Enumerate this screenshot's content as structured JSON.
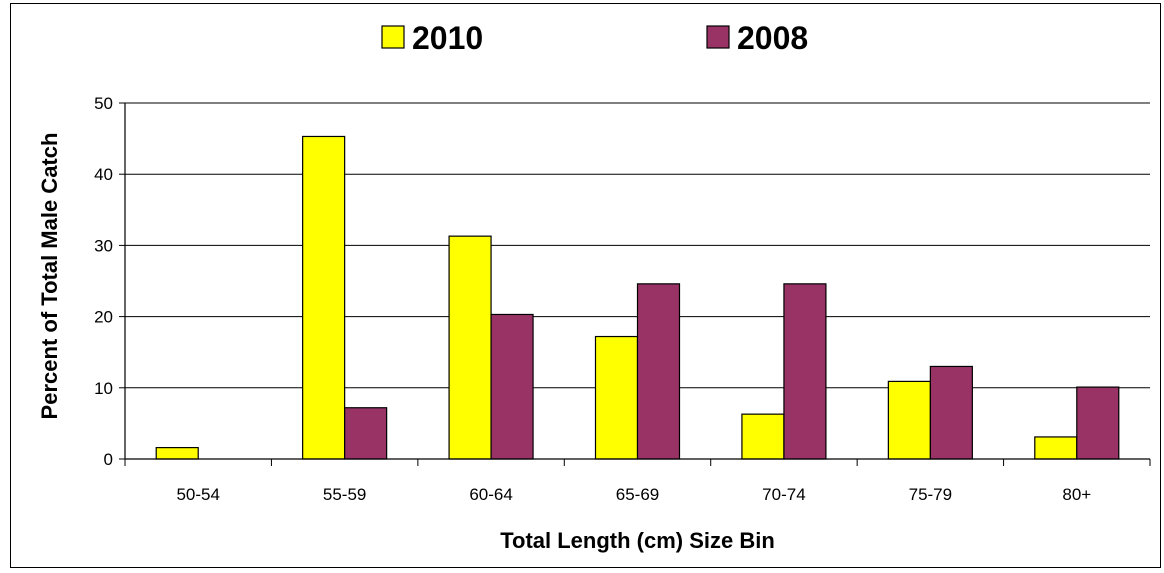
{
  "chart_data": {
    "type": "bar",
    "categories": [
      "50-54",
      "55-59",
      "60-64",
      "65-69",
      "70-74",
      "75-79",
      "80+"
    ],
    "series": [
      {
        "name": "2010",
        "values": [
          1.6,
          45.3,
          31.3,
          17.2,
          6.3,
          10.9,
          3.1
        ],
        "color": "#ffff00"
      },
      {
        "name": "2008",
        "values": [
          0,
          7.2,
          20.3,
          24.6,
          24.6,
          13.0,
          10.1
        ],
        "color": "#993366"
      }
    ],
    "xlabel": "Total Length (cm) Size Bin",
    "ylabel": "Percent of Total Male Catch",
    "ylim": [
      0,
      50
    ],
    "yticks": [
      0,
      10,
      20,
      30,
      40,
      50
    ],
    "grid": true,
    "legend_position": "top"
  }
}
